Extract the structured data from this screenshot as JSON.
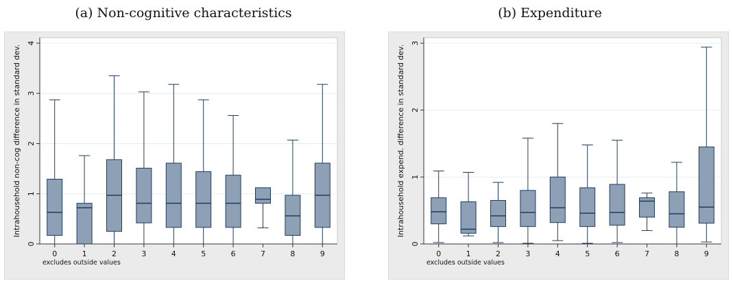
{
  "captions": [
    "(a) Non-cognitive characteristics",
    "(b) Expenditure"
  ],
  "chart_data": [
    {
      "type": "box",
      "title": "",
      "ylabel": "Intrahousehold non-cog difference in standard dev.",
      "xlabel": "",
      "note": "excludes outside values",
      "ylim": [
        0,
        4
      ],
      "yticks": [
        0,
        1,
        2,
        3,
        4
      ],
      "grid": true,
      "box_color": "#8da0b6",
      "categories": [
        "0",
        "1",
        "2",
        "3",
        "4",
        "5",
        "6",
        "7",
        "8",
        "9"
      ],
      "boxes": [
        {
          "min": 0.0,
          "q1": 0.17,
          "median": 0.63,
          "q3": 1.29,
          "max": 2.87
        },
        {
          "min": 0.0,
          "q1": 0.0,
          "median": 0.72,
          "q3": 0.81,
          "max": 1.76
        },
        {
          "min": 0.0,
          "q1": 0.25,
          "median": 0.97,
          "q3": 1.68,
          "max": 3.35
        },
        {
          "min": 0.0,
          "q1": 0.42,
          "median": 0.81,
          "q3": 1.51,
          "max": 3.03
        },
        {
          "min": 0.0,
          "q1": 0.33,
          "median": 0.81,
          "q3": 1.61,
          "max": 3.18
        },
        {
          "min": 0.0,
          "q1": 0.33,
          "median": 0.81,
          "q3": 1.44,
          "max": 2.87
        },
        {
          "min": 0.0,
          "q1": 0.33,
          "median": 0.81,
          "q3": 1.37,
          "max": 2.56
        },
        {
          "min": 0.32,
          "q1": 0.81,
          "median": 0.89,
          "q3": 1.12,
          "max": 1.12
        },
        {
          "min": 0.0,
          "q1": 0.17,
          "median": 0.56,
          "q3": 0.97,
          "max": 2.07
        },
        {
          "min": 0.0,
          "q1": 0.33,
          "median": 0.97,
          "q3": 1.61,
          "max": 3.18
        }
      ]
    },
    {
      "type": "box",
      "title": "",
      "ylabel": "Intrahousehold expend. difference in standard dev.",
      "xlabel": "",
      "note": "excludes outside values",
      "ylim": [
        0,
        3
      ],
      "yticks": [
        0,
        1,
        2,
        3
      ],
      "grid": true,
      "box_color": "#8da0b6",
      "categories": [
        "0",
        "1",
        "2",
        "3",
        "4",
        "5",
        "6",
        "7",
        "8",
        "9"
      ],
      "boxes": [
        {
          "min": 0.02,
          "q1": 0.3,
          "median": 0.48,
          "q3": 0.69,
          "max": 1.09
        },
        {
          "min": 0.12,
          "q1": 0.16,
          "median": 0.22,
          "q3": 0.63,
          "max": 1.07
        },
        {
          "min": 0.02,
          "q1": 0.26,
          "median": 0.42,
          "q3": 0.65,
          "max": 0.92
        },
        {
          "min": 0.01,
          "q1": 0.26,
          "median": 0.47,
          "q3": 0.8,
          "max": 1.58
        },
        {
          "min": 0.05,
          "q1": 0.32,
          "median": 0.54,
          "q3": 1.0,
          "max": 1.8
        },
        {
          "min": 0.01,
          "q1": 0.26,
          "median": 0.46,
          "q3": 0.84,
          "max": 1.48
        },
        {
          "min": 0.02,
          "q1": 0.28,
          "median": 0.47,
          "q3": 0.89,
          "max": 1.55
        },
        {
          "min": 0.2,
          "q1": 0.4,
          "median": 0.64,
          "q3": 0.69,
          "max": 0.76
        },
        {
          "min": 0.0,
          "q1": 0.25,
          "median": 0.45,
          "q3": 0.78,
          "max": 1.22
        },
        {
          "min": 0.03,
          "q1": 0.31,
          "median": 0.55,
          "q3": 1.45,
          "max": 2.94
        }
      ]
    }
  ]
}
